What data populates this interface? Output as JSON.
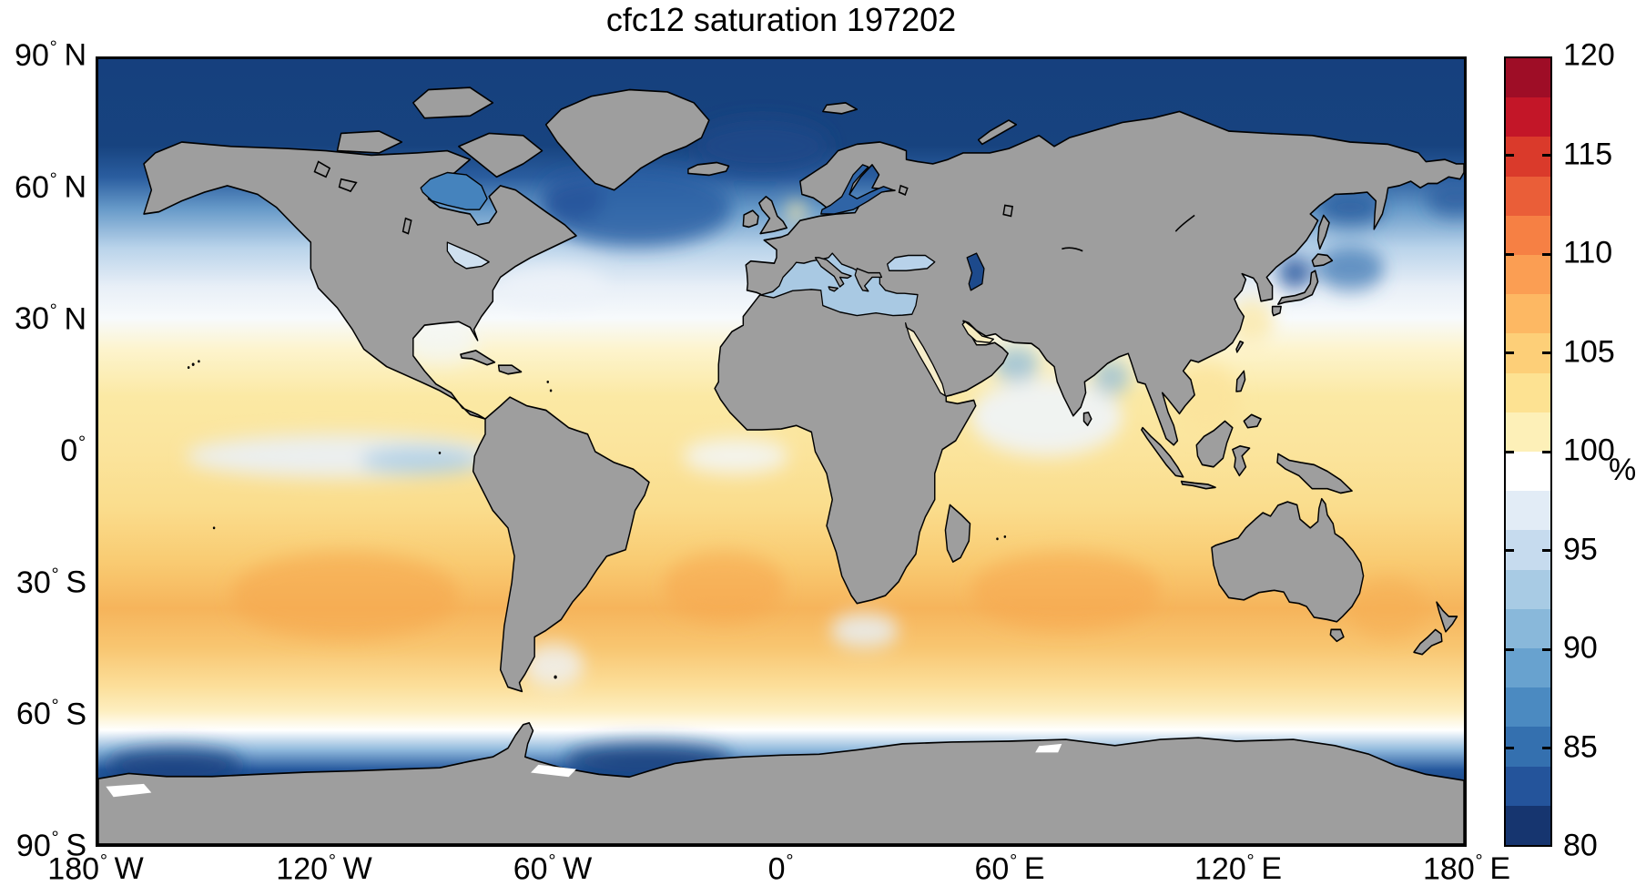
{
  "title": "cfc12 saturation 197202",
  "colorbar_unit": "%",
  "chart_data": {
    "type": "heatmap",
    "title": "cfc12 saturation 197202",
    "variable": "cfc12 saturation",
    "time_label": "197202",
    "unit": "%",
    "projection": "equirectangular world map",
    "lon_range": [
      -180,
      180
    ],
    "lat_range": [
      -90,
      90
    ],
    "grid": "off",
    "x_ticks": [
      {
        "value": -180,
        "label": "180",
        "hemisphere": "W"
      },
      {
        "value": -120,
        "label": "120",
        "hemisphere": "W"
      },
      {
        "value": -60,
        "label": "60",
        "hemisphere": "W"
      },
      {
        "value": 0,
        "label": "0",
        "hemisphere": ""
      },
      {
        "value": 60,
        "label": "60",
        "hemisphere": "E"
      },
      {
        "value": 120,
        "label": "120",
        "hemisphere": "E"
      },
      {
        "value": 180,
        "label": "180",
        "hemisphere": "E"
      }
    ],
    "y_ticks": [
      {
        "value": 90,
        "label": "90",
        "hemisphere": "N"
      },
      {
        "value": 60,
        "label": "60",
        "hemisphere": "N"
      },
      {
        "value": 30,
        "label": "30",
        "hemisphere": "N"
      },
      {
        "value": 0,
        "label": "0",
        "hemisphere": ""
      },
      {
        "value": -30,
        "label": "30",
        "hemisphere": "S"
      },
      {
        "value": -60,
        "label": "60",
        "hemisphere": "S"
      },
      {
        "value": -90,
        "label": "90",
        "hemisphere": "S"
      }
    ],
    "colorbar": {
      "min": 80,
      "max": 120,
      "band_step": 2,
      "tick_values": [
        120,
        115,
        110,
        105,
        100,
        95,
        90,
        85,
        80
      ],
      "unit_label": "%",
      "legend_position": "right",
      "colors_top_to_bottom": [
        "#9e0d26",
        "#c31628",
        "#da3a2b",
        "#ea5e38",
        "#f68044",
        "#fb9e53",
        "#fdb863",
        "#fdcf78",
        "#fde292",
        "#fdf0b8",
        "#ffffff",
        "#e2ecf6",
        "#c6dbee",
        "#a8cbe4",
        "#89b8da",
        "#68a2cf",
        "#4b8ac1",
        "#3470af",
        "#24549b",
        "#16356f"
      ]
    },
    "land_color": "#9e9e9e",
    "coast_color": "#000000",
    "background_color": "#ffffff",
    "zonal_gradient": [
      {
        "offset_pct": 0,
        "color": "#16407e"
      },
      {
        "offset_pct": 11,
        "color": "#17437f"
      },
      {
        "offset_pct": 15,
        "color": "#2a5d9f"
      },
      {
        "offset_pct": 19,
        "color": "#6699c8"
      },
      {
        "offset_pct": 24,
        "color": "#b9d3ea"
      },
      {
        "offset_pct": 29,
        "color": "#e8eff7"
      },
      {
        "offset_pct": 33,
        "color": "#f7fafc"
      },
      {
        "offset_pct": 37,
        "color": "#fdf4cd"
      },
      {
        "offset_pct": 43,
        "color": "#fbe9a4"
      },
      {
        "offset_pct": 50,
        "color": "#fbe49c"
      },
      {
        "offset_pct": 57,
        "color": "#fadd8d"
      },
      {
        "offset_pct": 64,
        "color": "#f9cb72"
      },
      {
        "offset_pct": 70,
        "color": "#f6b45b"
      },
      {
        "offset_pct": 75,
        "color": "#f8c671"
      },
      {
        "offset_pct": 80,
        "color": "#fcdf9b"
      },
      {
        "offset_pct": 83,
        "color": "#fdeebf"
      },
      {
        "offset_pct": 85.5,
        "color": "#ffffff"
      },
      {
        "offset_pct": 88,
        "color": "#8fb8dc"
      },
      {
        "offset_pct": 90.5,
        "color": "#275a9e"
      },
      {
        "offset_pct": 93,
        "color": "#16407e"
      },
      {
        "offset_pct": 96,
        "color": "#6f9fcc"
      },
      {
        "offset_pct": 98,
        "color": "#ffffff"
      },
      {
        "offset_pct": 100,
        "color": "#ffffff"
      }
    ],
    "regional_features": [
      {
        "name": "subpolar-north-atlantic-low",
        "lon": -38,
        "lat": 56,
        "rx_deg": 25,
        "ry_deg": 9,
        "color": "#2a5fa3",
        "opacity": 0.85
      },
      {
        "name": "norwegian-greenland-sea-low",
        "lon": -5,
        "lat": 70,
        "rx_deg": 18,
        "ry_deg": 6,
        "color": "#1c4888",
        "opacity": 0.9
      },
      {
        "name": "labrador-sea-low",
        "lon": -55,
        "lat": 58,
        "rx_deg": 8,
        "ry_deg": 5,
        "color": "#24549b",
        "opacity": 0.85
      },
      {
        "name": "gulf-stream-band-white",
        "lon": -60,
        "lat": 38,
        "rx_deg": 14,
        "ry_deg": 5,
        "color": "#eef3f9",
        "opacity": 0.8
      },
      {
        "name": "oyashio-kuroshio-low",
        "lon": 150,
        "lat": 42,
        "rx_deg": 9,
        "ry_deg": 5,
        "color": "#3470af",
        "opacity": 0.7
      },
      {
        "name": "japan-sea-low",
        "lon": 135.5,
        "lat": 41,
        "rx_deg": 4.5,
        "ry_deg": 3.5,
        "color": "#24549b",
        "opacity": 0.85
      },
      {
        "name": "okhotsk-sea-low",
        "lon": 150,
        "lat": 56,
        "rx_deg": 9,
        "ry_deg": 4,
        "color": "#2a5d9f",
        "opacity": 0.85
      },
      {
        "name": "bering-sea-low",
        "lon": 178,
        "lat": 58,
        "rx_deg": 8,
        "ry_deg": 4,
        "color": "#2a5d9f",
        "opacity": 0.8
      },
      {
        "name": "east-china-sea-high",
        "lon": 124,
        "lat": 30,
        "rx_deg": 6,
        "ry_deg": 5,
        "color": "#fbe8a8",
        "opacity": 0.8
      },
      {
        "name": "equatorial-pacific-upwelling",
        "lon": -115,
        "lat": -1,
        "rx_deg": 42,
        "ry_deg": 5,
        "color": "#eaf1f8",
        "opacity": 0.9
      },
      {
        "name": "equatorial-pacific-cold-tongue",
        "lon": -95,
        "lat": -2,
        "rx_deg": 16,
        "ry_deg": 3,
        "color": "#a8cbe4",
        "opacity": 0.85
      },
      {
        "name": "equatorial-atlantic-upwelling",
        "lon": -12,
        "lat": -1,
        "rx_deg": 14,
        "ry_deg": 4,
        "color": "#f2f7fb",
        "opacity": 0.85
      },
      {
        "name": "north-indian-white",
        "lon": 70,
        "lat": 8,
        "rx_deg": 20,
        "ry_deg": 9,
        "color": "#eff4fa",
        "opacity": 0.9
      },
      {
        "name": "nw-arabian-sea-low",
        "lon": 62,
        "lat": 20,
        "rx_deg": 6,
        "ry_deg": 4,
        "color": "#89b8da",
        "opacity": 0.75
      },
      {
        "name": "bay-of-bengal-low",
        "lon": 87,
        "lat": 17,
        "rx_deg": 5,
        "ry_deg": 4,
        "color": "#89b8da",
        "opacity": 0.7
      },
      {
        "name": "caribbean-gulf-white",
        "lon": -90,
        "lat": 25,
        "rx_deg": 10,
        "ry_deg": 5,
        "color": "#f2f6fa",
        "opacity": 0.7
      },
      {
        "name": "south-china-sea-high",
        "lon": 112,
        "lat": 12,
        "rx_deg": 9,
        "ry_deg": 8,
        "color": "#fbe49c",
        "opacity": 0.85
      },
      {
        "name": "south-pacific-gyre-high",
        "lon": -115,
        "lat": -33,
        "rx_deg": 30,
        "ry_deg": 10,
        "color": "#f6a94e",
        "opacity": 0.65
      },
      {
        "name": "south-atlantic-gyre-high",
        "lon": -15,
        "lat": -31,
        "rx_deg": 16,
        "ry_deg": 8,
        "color": "#f6a94e",
        "opacity": 0.6
      },
      {
        "name": "south-indian-gyre-high",
        "lon": 75,
        "lat": -32,
        "rx_deg": 25,
        "ry_deg": 9,
        "color": "#f6a94e",
        "opacity": 0.6
      },
      {
        "name": "tasman-sea-high",
        "lon": 160,
        "lat": -36,
        "rx_deg": 10,
        "ry_deg": 7,
        "color": "#f6ad52",
        "opacity": 0.55
      },
      {
        "name": "agulhas-retroflection-white",
        "lon": 22,
        "lat": -41,
        "rx_deg": 9,
        "ry_deg": 4,
        "color": "#e8f0f8",
        "opacity": 0.85
      },
      {
        "name": "falkland-patagonia-white",
        "lon": -60,
        "lat": -49,
        "rx_deg": 8,
        "ry_deg": 5,
        "color": "#edf3f9",
        "opacity": 0.8
      },
      {
        "name": "north-sea-patch-high",
        "lon": 4,
        "lat": 55,
        "rx_deg": 3,
        "ry_deg": 2,
        "color": "#fae7a6",
        "opacity": 0.9
      },
      {
        "name": "weddell-coastal-low",
        "lon": -35,
        "lat": -71,
        "rx_deg": 22,
        "ry_deg": 4,
        "color": "#16407e",
        "opacity": 0.9
      },
      {
        "name": "ross-coastal-low",
        "lon": -160,
        "lat": -72,
        "rx_deg": 18,
        "ry_deg": 4,
        "color": "#16407e",
        "opacity": 0.85
      }
    ],
    "seas": {
      "mediterranean": "#a9c9e3",
      "black-sea": "#b8d2ea",
      "caspian-sea": "#1d4a8c",
      "baltic-sea": "#2f64a6",
      "red-sea": "#f7eecb",
      "persian-gulf": "#f7ecc0",
      "hudson-bay": "#4583bd",
      "great-lakes": "#cfe0ef"
    },
    "zonal_mean_saturation_estimate": {
      "lat": [
        90,
        75,
        65,
        55,
        45,
        35,
        25,
        15,
        5,
        0,
        -10,
        -20,
        -30,
        -40,
        -50,
        -57,
        -63,
        -70,
        -78
      ],
      "pct": [
        81,
        82,
        88,
        94,
        98,
        100,
        102,
        103,
        102,
        101,
        103,
        104,
        106,
        105,
        102,
        100,
        97,
        84,
        82
      ]
    }
  }
}
